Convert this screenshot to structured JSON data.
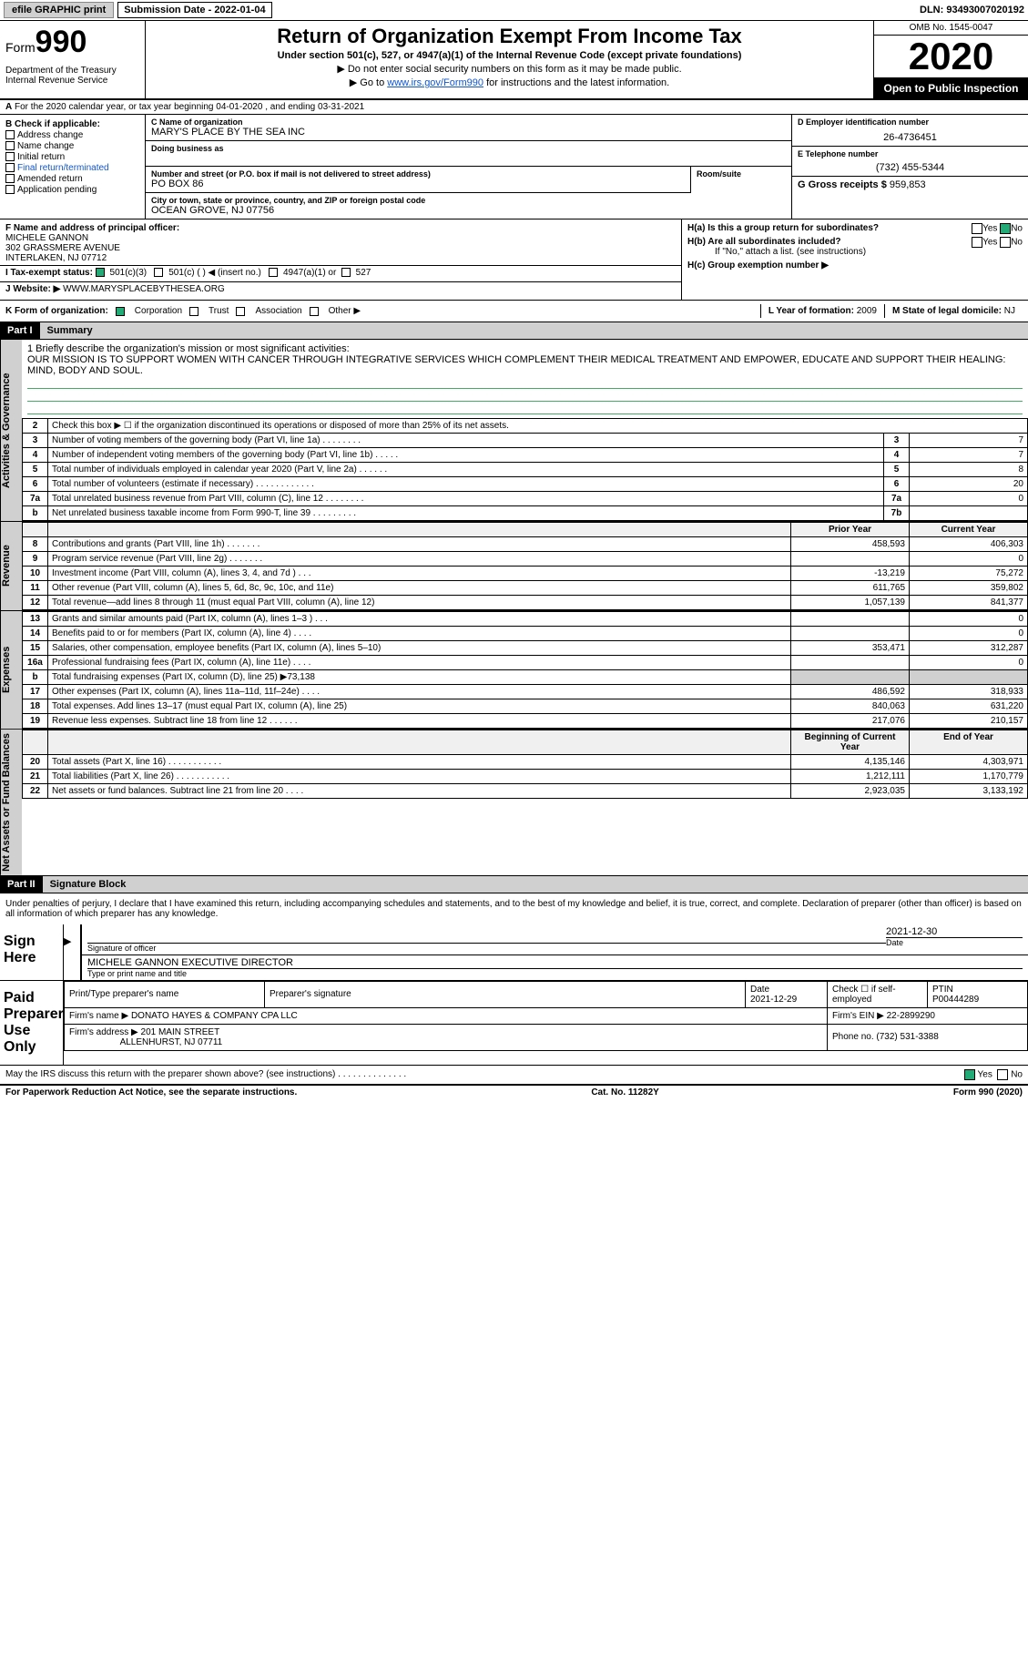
{
  "topbar": {
    "efile_label": "efile GRAPHIC print",
    "submission_label": "Submission Date - 2022-01-04",
    "dln_label": "DLN: 93493007020192"
  },
  "header": {
    "form_prefix": "Form",
    "form_number": "990",
    "dept": "Department of the Treasury\nInternal Revenue Service",
    "title": "Return of Organization Exempt From Income Tax",
    "subtitle": "Under section 501(c), 527, or 4947(a)(1) of the Internal Revenue Code (except private foundations)",
    "note1": "▶ Do not enter social security numbers on this form as it may be made public.",
    "note2_pre": "▶ Go to ",
    "note2_link": "www.irs.gov/Form990",
    "note2_post": " for instructions and the latest information.",
    "omb": "OMB No. 1545-0047",
    "year": "2020",
    "open_inspection": "Open to Public Inspection"
  },
  "line_a": "For the 2020 calendar year, or tax year beginning 04-01-2020   , and ending 03-31-2021",
  "col_b": {
    "title": "B Check if applicable:",
    "items": [
      "Address change",
      "Name change",
      "Initial return",
      "Final return/terminated",
      "Amended return",
      "Application pending"
    ]
  },
  "org": {
    "name_lbl": "C Name of organization",
    "name": "MARY'S PLACE BY THE SEA INC",
    "dba_lbl": "Doing business as",
    "dba": "",
    "street_lbl": "Number and street (or P.O. box if mail is not delivered to street address)",
    "street": "PO BOX 86",
    "room_lbl": "Room/suite",
    "city_lbl": "City or town, state or province, country, and ZIP or foreign postal code",
    "city": "OCEAN GROVE, NJ  07756"
  },
  "col_d": {
    "lbl": "D Employer identification number",
    "val": "26-4736451"
  },
  "col_e": {
    "lbl": "E Telephone number",
    "val": "(732) 455-5344"
  },
  "col_g": {
    "lbl": "G Gross receipts $",
    "val": "959,853"
  },
  "col_f": {
    "lbl": "F  Name and address of principal officer:",
    "name": "MICHELE GANNON",
    "addr1": "302 GRASSMERE AVENUE",
    "addr2": "INTERLAKEN, NJ  07712"
  },
  "col_h": {
    "a": "H(a)  Is this a group return for subordinates?",
    "b": "H(b)  Are all subordinates included?",
    "b_note": "If \"No,\" attach a list. (see instructions)",
    "c": "H(c)  Group exemption number ▶",
    "yes": "Yes",
    "no": "No"
  },
  "line_i": {
    "lbl": "I   Tax-exempt status:",
    "opts": [
      "501(c)(3)",
      "501(c) (  ) ◀ (insert no.)",
      "4947(a)(1) or",
      "527"
    ]
  },
  "line_j": {
    "lbl": "J   Website: ▶",
    "val": "WWW.MARYSPLACEBYTHESEA.ORG"
  },
  "line_k": {
    "lbl": "K Form of organization:",
    "opts": [
      "Corporation",
      "Trust",
      "Association",
      "Other ▶"
    ],
    "l_lbl": "L Year of formation:",
    "l_val": "2009",
    "m_lbl": "M State of legal domicile:",
    "m_val": "NJ"
  },
  "part1": {
    "hdr": "Part I",
    "title": "Summary"
  },
  "mission": {
    "intro": "1   Briefly describe the organization's mission or most significant activities:",
    "text": "OUR MISSION IS TO SUPPORT WOMEN WITH CANCER THROUGH INTEGRATIVE SERVICES WHICH COMPLEMENT THEIR MEDICAL TREATMENT AND EMPOWER, EDUCATE AND SUPPORT THEIR HEALING: MIND, BODY AND SOUL."
  },
  "gov_rows": [
    {
      "n": "2",
      "d": "Check this box ▶ ☐  if the organization discontinued its operations or disposed of more than 25% of its net assets.",
      "c": "",
      "v": ""
    },
    {
      "n": "3",
      "d": "Number of voting members of the governing body (Part VI, line 1a)   .    .    .    .    .    .    .    .",
      "c": "3",
      "v": "7"
    },
    {
      "n": "4",
      "d": "Number of independent voting members of the governing body (Part VI, line 1b)   .    .    .    .    .",
      "c": "4",
      "v": "7"
    },
    {
      "n": "5",
      "d": "Total number of individuals employed in calendar year 2020 (Part V, line 2a)   .    .    .    .    .    .",
      "c": "5",
      "v": "8"
    },
    {
      "n": "6",
      "d": "Total number of volunteers (estimate if necessary)   .    .    .    .    .    .    .    .    .    .    .    .",
      "c": "6",
      "v": "20"
    },
    {
      "n": "7a",
      "d": "Total unrelated business revenue from Part VIII, column (C), line 12   .    .    .    .    .    .    .    .",
      "c": "7a",
      "v": "0"
    },
    {
      "n": "b",
      "d": "Net unrelated business taxable income from Form 990-T, line 39   .    .    .    .    .    .    .    .    .",
      "c": "7b",
      "v": ""
    }
  ],
  "rev_hdr": {
    "py": "Prior Year",
    "cy": "Current Year"
  },
  "rev_rows": [
    {
      "n": "8",
      "d": "Contributions and grants (Part VIII, line 1h)   .    .    .    .    .    .    .",
      "py": "458,593",
      "cy": "406,303"
    },
    {
      "n": "9",
      "d": "Program service revenue (Part VIII, line 2g)   .    .    .    .    .    .    .",
      "py": "",
      "cy": "0"
    },
    {
      "n": "10",
      "d": "Investment income (Part VIII, column (A), lines 3, 4, and 7d )   .    .    .",
      "py": "-13,219",
      "cy": "75,272"
    },
    {
      "n": "11",
      "d": "Other revenue (Part VIII, column (A), lines 5, 6d, 8c, 9c, 10c, and 11e)",
      "py": "611,765",
      "cy": "359,802"
    },
    {
      "n": "12",
      "d": "Total revenue—add lines 8 through 11 (must equal Part VIII, column (A), line 12)",
      "py": "1,057,139",
      "cy": "841,377"
    }
  ],
  "exp_rows": [
    {
      "n": "13",
      "d": "Grants and similar amounts paid (Part IX, column (A), lines 1–3 )   .    .    .",
      "py": "",
      "cy": "0"
    },
    {
      "n": "14",
      "d": "Benefits paid to or for members (Part IX, column (A), line 4)   .    .    .    .",
      "py": "",
      "cy": "0"
    },
    {
      "n": "15",
      "d": "Salaries, other compensation, employee benefits (Part IX, column (A), lines 5–10)",
      "py": "353,471",
      "cy": "312,287"
    },
    {
      "n": "16a",
      "d": "Professional fundraising fees (Part IX, column (A), line 11e)   .    .    .    .",
      "py": "",
      "cy": "0"
    },
    {
      "n": "b",
      "d": "Total fundraising expenses (Part IX, column (D), line 25) ▶73,138",
      "py": "GRAY",
      "cy": "GRAY"
    },
    {
      "n": "17",
      "d": "Other expenses (Part IX, column (A), lines 11a–11d, 11f–24e)   .    .    .    .",
      "py": "486,592",
      "cy": "318,933"
    },
    {
      "n": "18",
      "d": "Total expenses. Add lines 13–17 (must equal Part IX, column (A), line 25)",
      "py": "840,063",
      "cy": "631,220"
    },
    {
      "n": "19",
      "d": "Revenue less expenses. Subtract line 18 from line 12   .    .    .    .    .    .",
      "py": "217,076",
      "cy": "210,157"
    }
  ],
  "net_hdr": {
    "by": "Beginning of Current Year",
    "ey": "End of Year"
  },
  "net_rows": [
    {
      "n": "20",
      "d": "Total assets (Part X, line 16)   .    .    .    .    .    .    .    .    .    .    .",
      "py": "4,135,146",
      "cy": "4,303,971"
    },
    {
      "n": "21",
      "d": "Total liabilities (Part X, line 26)   .    .    .    .    .    .    .    .    .    .    .",
      "py": "1,212,111",
      "cy": "1,170,779"
    },
    {
      "n": "22",
      "d": "Net assets or fund balances. Subtract line 21 from line 20   .    .    .    .",
      "py": "2,923,035",
      "cy": "3,133,192"
    }
  ],
  "part2": {
    "hdr": "Part II",
    "title": "Signature Block"
  },
  "sig": {
    "penalty": "Under penalties of perjury, I declare that I have examined this return, including accompanying schedules and statements, and to the best of my knowledge and belief, it is true, correct, and complete. Declaration of preparer (other than officer) is based on all information of which preparer has any knowledge.",
    "sign_here": "Sign Here",
    "sig_officer_lbl": "Signature of officer",
    "sig_date": "2021-12-30",
    "date_lbl": "Date",
    "officer_name": "MICHELE GANNON  EXECUTIVE DIRECTOR",
    "officer_lbl": "Type or print name and title",
    "paid_prep": "Paid Preparer Use Only",
    "pt_name_lbl": "Print/Type preparer's name",
    "pt_sig_lbl": "Preparer's signature",
    "pt_date_lbl": "Date",
    "pt_date": "2021-12-29",
    "pt_check_lbl": "Check ☐ if self-employed",
    "ptin_lbl": "PTIN",
    "ptin": "P00444289",
    "firm_name_lbl": "Firm's name   ▶",
    "firm_name": "DONATO HAYES & COMPANY CPA LLC",
    "firm_ein_lbl": "Firm's EIN ▶",
    "firm_ein": "22-2899290",
    "firm_addr_lbl": "Firm's address ▶",
    "firm_addr": "201 MAIN STREET",
    "firm_addr2": "ALLENHURST, NJ  07711",
    "phone_lbl": "Phone no.",
    "phone": "(732) 531-3388",
    "discuss": "May the IRS discuss this return with the preparer shown above? (see instructions)   .    .    .    .    .    .    .    .    .    .    .    .    .    .",
    "yes": "Yes",
    "no": "No"
  },
  "footer": {
    "left": "For Paperwork Reduction Act Notice, see the separate instructions.",
    "mid": "Cat. No. 11282Y",
    "right": "Form 990 (2020)"
  },
  "vside": {
    "gov": "Activities & Governance",
    "rev": "Revenue",
    "exp": "Expenses",
    "net": "Net Assets or Fund Balances"
  }
}
